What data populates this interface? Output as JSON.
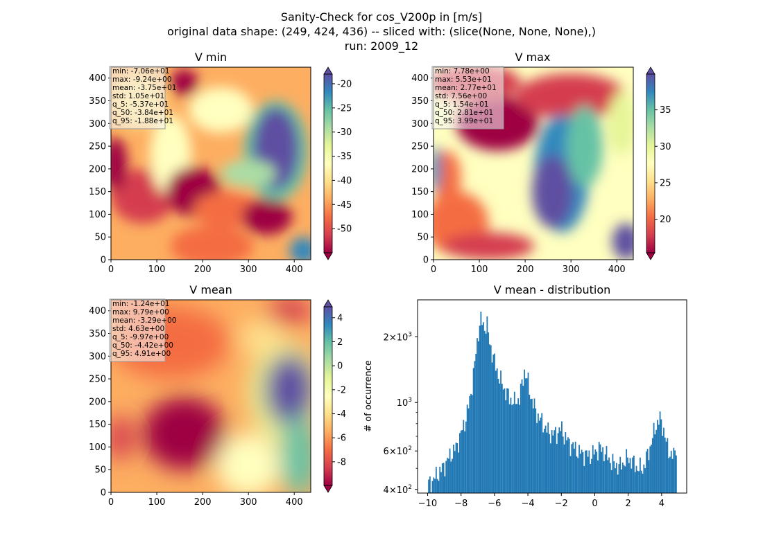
{
  "suptitle": {
    "line1": "Sanity-Check for cos_V200p in [m/s]",
    "line2": "original data shape: (249, 424, 436) -- sliced with: (slice(None, None, None),)",
    "line3": "run: 2009_12"
  },
  "colors": {
    "spectral": [
      "#9e0142",
      "#d53e4f",
      "#f46d43",
      "#fdae61",
      "#fee08b",
      "#ffffbf",
      "#e6f598",
      "#abdda4",
      "#66c2a5",
      "#3288bd",
      "#5e4fa2"
    ],
    "bar": "#1f77b4"
  },
  "chart_data": [
    {
      "type": "heatmap",
      "title": "V min",
      "x_ticks": [
        "0",
        "100",
        "200",
        "300",
        "400"
      ],
      "y_ticks": [
        "0",
        "50",
        "100",
        "150",
        "200",
        "250",
        "300",
        "350",
        "400"
      ],
      "xlim": [
        0,
        436
      ],
      "ylim": [
        0,
        424
      ],
      "colormap": "Spectral",
      "colorbar": {
        "vmin": -55,
        "vmax": -18,
        "extend": "both",
        "ticks": [
          "-50",
          "-45",
          "-40",
          "-35",
          "-30",
          "-25",
          "-20"
        ],
        "tick_values": [
          -50,
          -45,
          -40,
          -35,
          -30,
          -25,
          -20
        ]
      },
      "stats": [
        "min: -7.06e+01",
        "max: -9.24e+00",
        "mean: -3.75e+01",
        "std: 1.05e+01",
        "q_5: -5.37e+01",
        "q_50: -3.84e+01",
        "q_95: -1.88e+01"
      ]
    },
    {
      "type": "heatmap",
      "title": "V max",
      "x_ticks": [
        "0",
        "100",
        "200",
        "300",
        "400"
      ],
      "y_ticks": [
        "0",
        "50",
        "100",
        "150",
        "200",
        "250",
        "300",
        "350",
        "400"
      ],
      "xlim": [
        0,
        436
      ],
      "ylim": [
        0,
        424
      ],
      "colormap": "Spectral",
      "colorbar": {
        "vmin": 15.4,
        "vmax": 39.9,
        "extend": "both",
        "ticks": [
          "20",
          "25",
          "30",
          "35"
        ],
        "tick_values": [
          20,
          25,
          30,
          35
        ]
      },
      "stats": [
        "min: 7.78e+00",
        "max: 5.53e+01",
        "mean: 2.77e+01",
        "std: 7.56e+00",
        "q_5: 1.54e+01",
        "q_50: 2.81e+01",
        "q_95: 3.99e+01"
      ]
    },
    {
      "type": "heatmap",
      "title": "V mean",
      "x_ticks": [
        "0",
        "100",
        "200",
        "300",
        "400"
      ],
      "y_ticks": [
        "0",
        "50",
        "100",
        "150",
        "200",
        "250",
        "300",
        "350",
        "400"
      ],
      "xlim": [
        0,
        436
      ],
      "ylim": [
        0,
        424
      ],
      "colormap": "Spectral",
      "colorbar": {
        "vmin": -9.97,
        "vmax": 4.91,
        "extend": "both",
        "ticks": [
          "-8",
          "-6",
          "-4",
          "-2",
          "0",
          "2",
          "4"
        ],
        "tick_values": [
          -8,
          -6,
          -4,
          -2,
          0,
          2,
          4
        ]
      },
      "stats": [
        "min: -1.24e+01",
        "max: 9.79e+00",
        "mean: -3.29e+00",
        "std: 4.63e+00",
        "q_5: -9.97e+00",
        "q_50: -4.42e+00",
        "q_95: 4.91e+00"
      ]
    },
    {
      "type": "bar",
      "title": "V mean - distribution",
      "ylabel": "# of occurrence",
      "yscale": "log",
      "xlim": [
        -10.6,
        5.5
      ],
      "ylim": [
        385,
        2950
      ],
      "x_ticks": [
        "−10",
        "−8",
        "−6",
        "−4",
        "−2",
        "0",
        "2",
        "4"
      ],
      "x_tick_values": [
        -10,
        -8,
        -6,
        -4,
        -2,
        0,
        2,
        4
      ],
      "y_major_ticks": [
        {
          "value": 400,
          "base": "4×10",
          "exp": "2"
        },
        {
          "value": 600,
          "base": "6×10",
          "exp": "2"
        },
        {
          "value": 1000,
          "base": "10",
          "exp": "3"
        },
        {
          "value": 2000,
          "base": "2×10",
          "exp": "3"
        }
      ],
      "y_minor_tick_values": [
        500,
        700,
        800,
        900
      ],
      "bin_start": -9.97,
      "bin_end": 4.91,
      "anchors": [
        [
          -9.97,
          420
        ],
        [
          -9.7,
          440
        ],
        [
          -9.4,
          470
        ],
        [
          -9.1,
          500
        ],
        [
          -8.9,
          530
        ],
        [
          -8.6,
          580
        ],
        [
          -8.3,
          620
        ],
        [
          -8.0,
          720
        ],
        [
          -7.7,
          850
        ],
        [
          -7.5,
          1000
        ],
        [
          -7.3,
          1250
        ],
        [
          -7.1,
          1700
        ],
        [
          -6.95,
          2150
        ],
        [
          -6.8,
          2400
        ],
        [
          -6.6,
          2200
        ],
        [
          -6.45,
          2300
        ],
        [
          -6.3,
          1900
        ],
        [
          -6.1,
          1650
        ],
        [
          -5.9,
          1450
        ],
        [
          -5.7,
          1300
        ],
        [
          -5.4,
          1150
        ],
        [
          -5.1,
          1050
        ],
        [
          -4.8,
          1000
        ],
        [
          -4.5,
          1050
        ],
        [
          -4.2,
          1400
        ],
        [
          -4.0,
          1250
        ],
        [
          -3.8,
          1050
        ],
        [
          -3.5,
          900
        ],
        [
          -3.1,
          800
        ],
        [
          -2.7,
          720
        ],
        [
          -2.3,
          720
        ],
        [
          -2.0,
          760
        ],
        [
          -1.8,
          700
        ],
        [
          -1.5,
          650
        ],
        [
          -1.2,
          620
        ],
        [
          -0.9,
          590
        ],
        [
          -0.6,
          580
        ],
        [
          -0.3,
          570
        ],
        [
          0.0,
          590
        ],
        [
          0.3,
          620
        ],
        [
          0.6,
          590
        ],
        [
          0.9,
          545
        ],
        [
          1.2,
          520
        ],
        [
          1.5,
          510
        ],
        [
          1.8,
          540
        ],
        [
          2.0,
          560
        ],
        [
          2.3,
          530
        ],
        [
          2.6,
          500
        ],
        [
          2.9,
          500
        ],
        [
          3.1,
          560
        ],
        [
          3.3,
          620
        ],
        [
          3.5,
          710
        ],
        [
          3.7,
          800
        ],
        [
          3.9,
          840
        ],
        [
          4.1,
          770
        ],
        [
          4.3,
          640
        ],
        [
          4.5,
          590
        ],
        [
          4.7,
          560
        ],
        [
          4.91,
          660
        ]
      ]
    }
  ]
}
